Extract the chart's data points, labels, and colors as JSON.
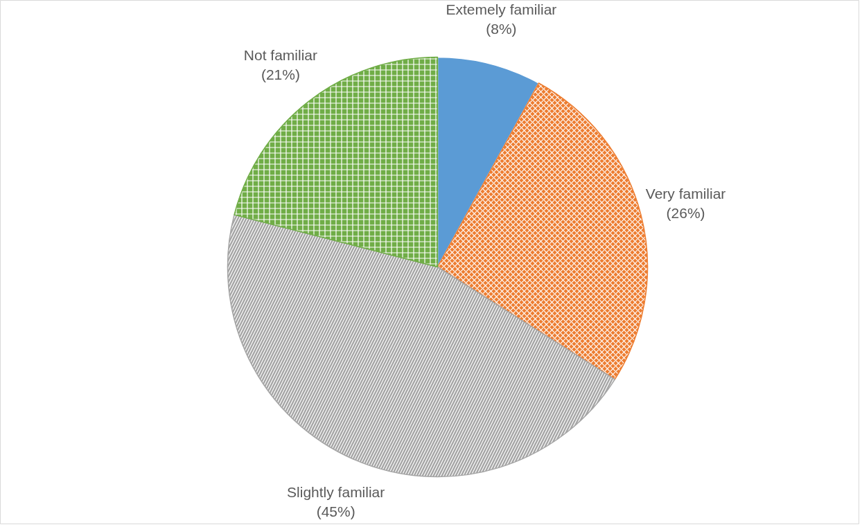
{
  "chart_data": {
    "type": "pie",
    "categories": [
      "Extemely familiar",
      "Very familiar",
      "Slightly familiar",
      "Not familiar"
    ],
    "values": [
      8,
      26,
      45,
      21
    ],
    "colors": [
      "#5b9bd5",
      "#ed7d31",
      "#a5a5a5",
      "#70ad47"
    ],
    "value_labels": [
      "(8%)",
      "(26%)",
      "(45%)",
      "(21%)"
    ]
  }
}
